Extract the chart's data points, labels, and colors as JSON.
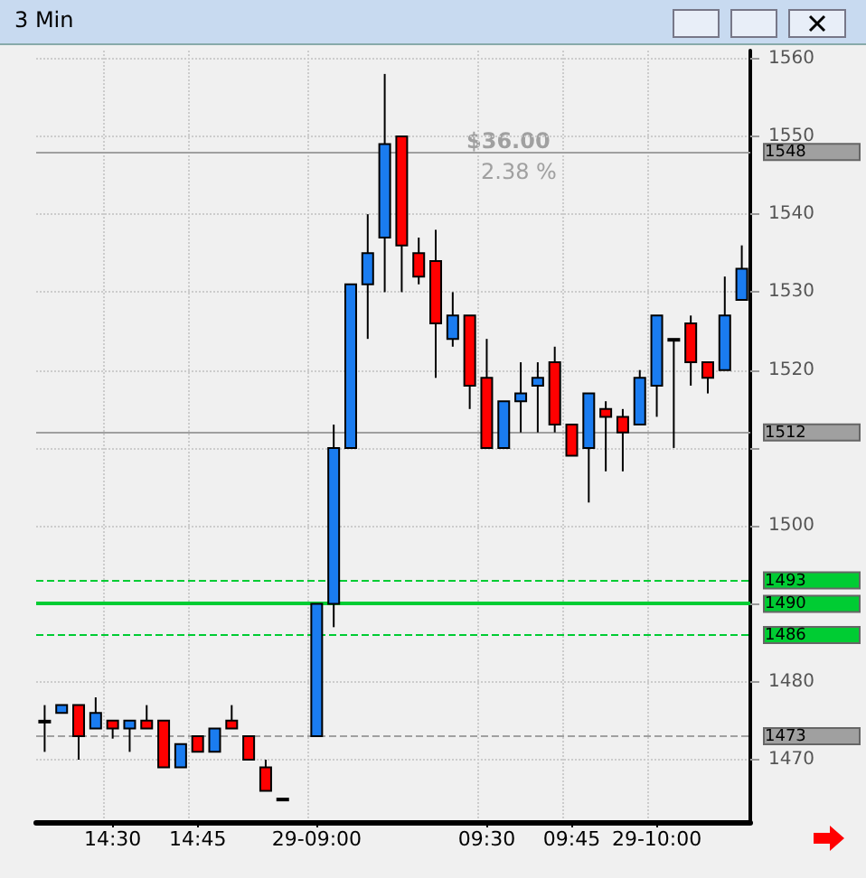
{
  "chart_data": {
    "type": "candlestick",
    "title": "3 Min",
    "categories": [
      null,
      null,
      null,
      null,
      "14:30",
      null,
      null,
      null,
      null,
      "14:45",
      null,
      null,
      null,
      null,
      null,
      null,
      "29-09:00",
      null,
      null,
      null,
      null,
      null,
      null,
      null,
      null,
      null,
      "09:30",
      null,
      null,
      null,
      null,
      "09:45",
      null,
      null,
      null,
      null,
      "29-10:00",
      null,
      null,
      null,
      null,
      null
    ],
    "ohlc": [
      [
        1475,
        1477,
        1471,
        1475
      ],
      [
        1476,
        1477,
        1476,
        1477
      ],
      [
        1477,
        1477,
        1470,
        1473
      ],
      [
        1474,
        1478,
        1474,
        1476
      ],
      [
        1475,
        1475,
        1472.7,
        1474
      ],
      [
        1474,
        1475,
        1471,
        1475
      ],
      [
        1475,
        1477,
        1474,
        1474
      ],
      [
        1475,
        1475,
        1469,
        1469
      ],
      [
        1469,
        1472,
        1469,
        1472
      ],
      [
        1473,
        1473,
        1471,
        1471
      ],
      [
        1471,
        1474,
        1471,
        1474
      ],
      [
        1475,
        1477,
        1474,
        1474
      ],
      [
        1473,
        1473,
        1470,
        1470
      ],
      [
        1469,
        1470,
        1466,
        1466
      ],
      [
        1465,
        1465,
        1465,
        1465
      ],
      null,
      [
        1473,
        1490,
        1473,
        1490
      ],
      [
        1490,
        1513,
        1487,
        1510
      ],
      [
        1510,
        1531,
        1510,
        1531
      ],
      [
        1531,
        1540,
        1524,
        1535
      ],
      [
        1537,
        1558,
        1530,
        1549
      ],
      [
        1550,
        1550,
        1530,
        1536
      ],
      [
        1535,
        1537,
        1531,
        1532
      ],
      [
        1534,
        1538,
        1519,
        1526
      ],
      [
        1524,
        1530,
        1523,
        1527
      ],
      [
        1527,
        1527,
        1515,
        1518
      ],
      [
        1519,
        1524,
        1510,
        1510
      ],
      [
        1510,
        1516,
        1510,
        1516
      ],
      [
        1516,
        1521,
        1512,
        1517
      ],
      [
        1518,
        1521,
        1512,
        1519
      ],
      [
        1521,
        1523,
        1512,
        1513
      ],
      [
        1513,
        1513,
        1509,
        1509
      ],
      [
        1510,
        1517,
        1503,
        1517
      ],
      [
        1515,
        1516,
        1507,
        1514
      ],
      [
        1514,
        1515,
        1507,
        1512
      ],
      [
        1513,
        1520,
        1513,
        1519
      ],
      [
        1518,
        1527,
        1514,
        1527
      ],
      [
        1524,
        1524,
        1510,
        1524
      ],
      [
        1526,
        1527,
        1518,
        1521
      ],
      [
        1521,
        1521,
        1517,
        1519
      ],
      [
        1520,
        1532,
        1520,
        1527
      ],
      [
        1529,
        1536,
        1529,
        1533
      ]
    ],
    "colors": [
      "#000000",
      "#1a7cf0",
      "#ff0000",
      "#1a7cf0",
      "#ff0000",
      "#1a7cf0",
      "#ff0000",
      "#ff0000",
      "#1a7cf0",
      "#ff0000",
      "#1a7cf0",
      "#ff0000",
      "#ff0000",
      "#ff0000",
      "#000000",
      null,
      "#1a7cf0",
      "#1a7cf0",
      "#1a7cf0",
      "#1a7cf0",
      "#1a7cf0",
      "#ff0000",
      "#ff0000",
      "#ff0000",
      "#1a7cf0",
      "#ff0000",
      "#ff0000",
      "#1a7cf0",
      "#1a7cf0",
      "#1a7cf0",
      "#ff0000",
      "#ff0000",
      "#1a7cf0",
      "#ff0000",
      "#ff0000",
      "#1a7cf0",
      "#1a7cf0",
      "#000000",
      "#ff0000",
      "#ff0000",
      "#1a7cf0",
      "#1a7cf0"
    ],
    "ylim": [
      1462,
      1561
    ],
    "yticks": [
      1470,
      1480,
      {
        "value": 1490,
        "label": null
      },
      1500,
      {
        "value": 1510,
        "label": null
      },
      1520,
      1530,
      1540,
      1550,
      1560
    ],
    "grid": true,
    "ref_lines": [
      {
        "axis": "y",
        "value": 1548,
        "label": "1548",
        "color": "#a0a0a0",
        "line_style": "solid"
      },
      {
        "axis": "y",
        "value": 1512,
        "label": "1512",
        "color": "#a0a0a0",
        "line_style": "solid"
      },
      {
        "axis": "y",
        "value": 1493,
        "label": "1493",
        "color": "#00cc33",
        "line_style": "dashed"
      },
      {
        "axis": "y",
        "value": 1490,
        "label": "1490",
        "color": "#00cc33",
        "line_style": "solid"
      },
      {
        "axis": "y",
        "value": 1486,
        "label": "1486",
        "color": "#00cc33",
        "line_style": "dashed"
      },
      {
        "axis": "y",
        "value": 1473,
        "label": "1473",
        "color": "#a0a0a0",
        "line_style": "dashed"
      }
    ],
    "annotations": [
      "$36.00",
      "2.38 %"
    ]
  }
}
